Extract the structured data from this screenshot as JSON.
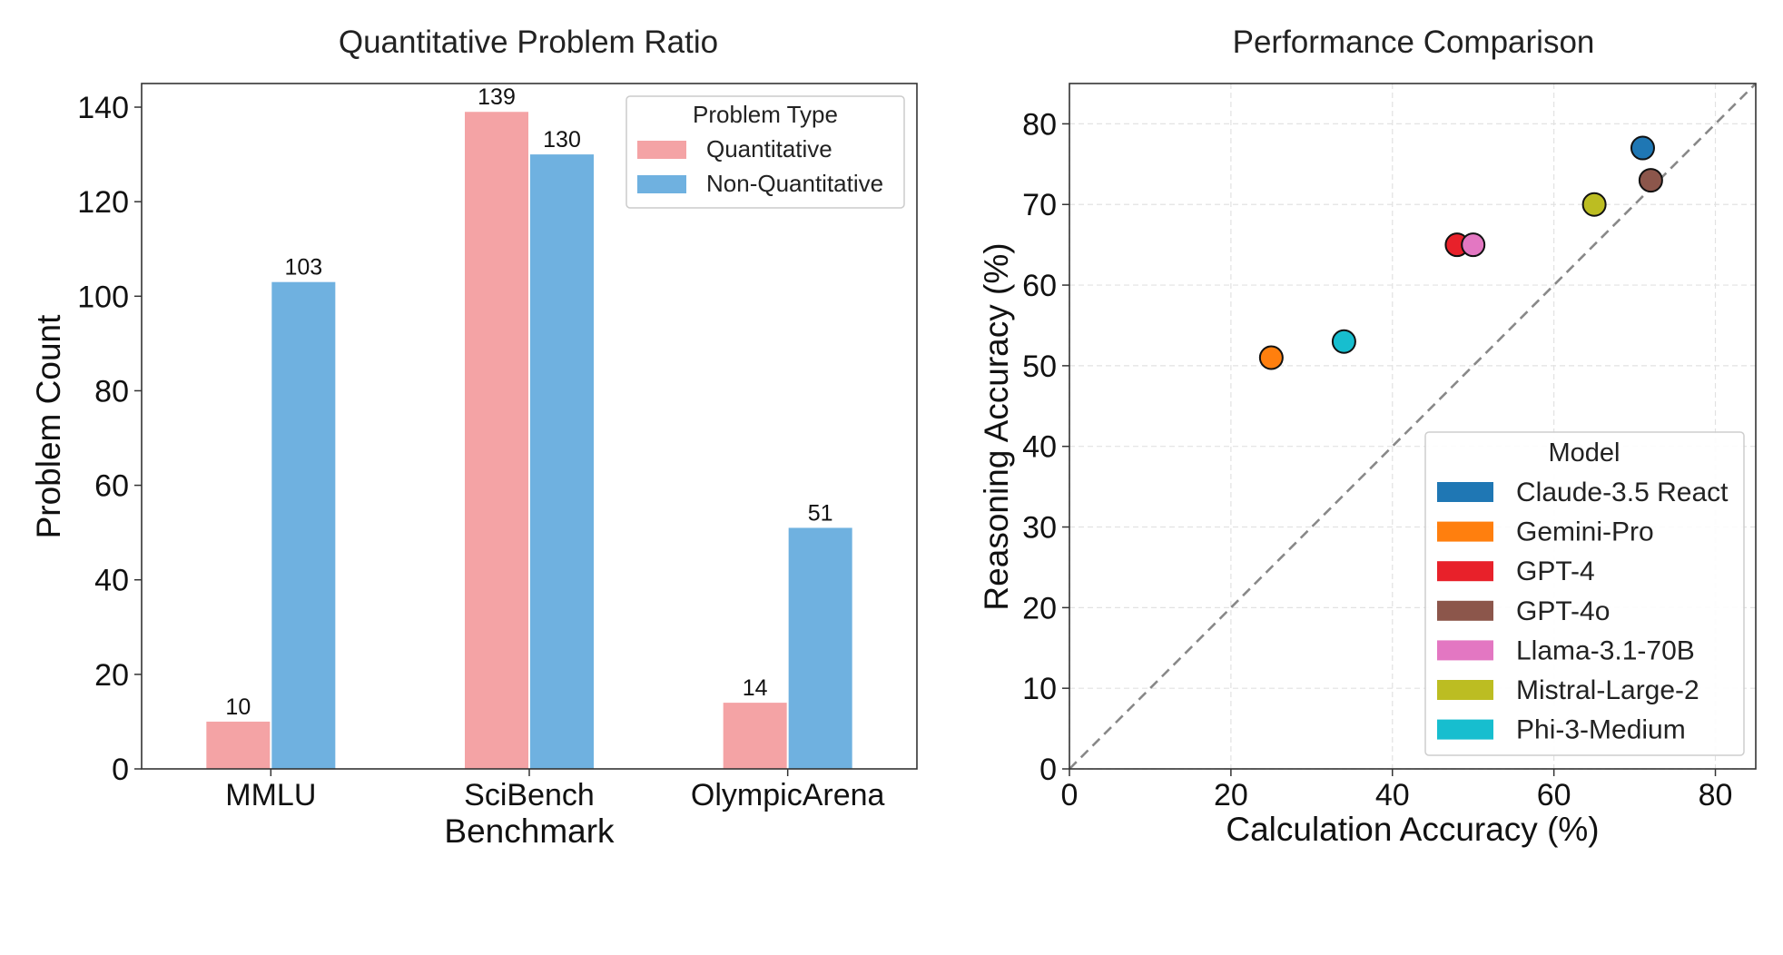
{
  "chart_data": [
    {
      "type": "bar",
      "title": "Quantitative Problem Ratio",
      "xlabel": "Benchmark",
      "ylabel": "Problem Count",
      "ylim": [
        0,
        145
      ],
      "yticks": [
        0,
        20,
        40,
        60,
        80,
        100,
        120,
        140
      ],
      "categories": [
        "MMLU",
        "SciBench",
        "OlympicArena"
      ],
      "legend_title": "Problem Type",
      "legend_position": "top-right",
      "series": [
        {
          "name": "Quantitative",
          "color": "#f4a3a5",
          "values": [
            10,
            139,
            14
          ]
        },
        {
          "name": "Non-Quantitative",
          "color": "#6fb1e0",
          "values": [
            103,
            130,
            51
          ]
        }
      ]
    },
    {
      "type": "scatter",
      "title": "Performance Comparison",
      "xlabel": "Calculation Accuracy (%)",
      "ylabel": "Reasoning Accuracy (%)",
      "xlim": [
        0,
        85
      ],
      "ylim": [
        0,
        85
      ],
      "xticks": [
        0,
        20,
        40,
        60,
        80
      ],
      "yticks": [
        0,
        10,
        20,
        30,
        40,
        50,
        60,
        70,
        80
      ],
      "grid": true,
      "diagonal_reference_line": true,
      "legend_title": "Model",
      "legend_position": "bottom-right",
      "points": [
        {
          "name": "Claude-3.5 React",
          "color": "#1f77b4",
          "x": 71,
          "y": 77
        },
        {
          "name": "Gemini-Pro",
          "color": "#ff7f0e",
          "x": 25,
          "y": 51
        },
        {
          "name": "GPT-4",
          "color": "#e8212a",
          "x": 48,
          "y": 65
        },
        {
          "name": "GPT-4o",
          "color": "#8c564b",
          "x": 72,
          "y": 73
        },
        {
          "name": "Llama-3.1-70B",
          "color": "#e377c2",
          "x": 50,
          "y": 65
        },
        {
          "name": "Mistral-Large-2",
          "color": "#bcbd22",
          "x": 65,
          "y": 70
        },
        {
          "name": "Phi-3-Medium",
          "color": "#17becf",
          "x": 34,
          "y": 53
        }
      ]
    }
  ]
}
